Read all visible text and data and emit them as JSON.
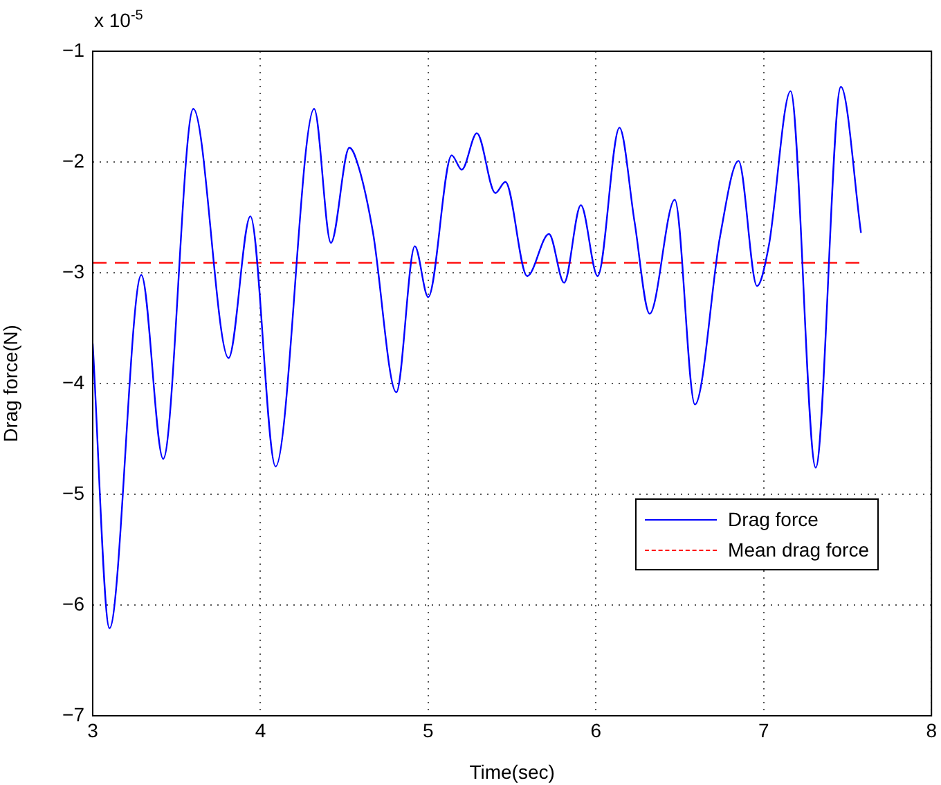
{
  "chart_data": {
    "type": "line",
    "xlabel": "Time(sec)",
    "ylabel": "Drag force(N)",
    "annotations": [
      "x 10$^{-5}$"
    ],
    "xlim": [
      3,
      8
    ],
    "ylim": [
      -7,
      -1
    ],
    "xticks": [
      3,
      4,
      5,
      6,
      7,
      8
    ],
    "yticks": [
      -7,
      -6,
      -5,
      -4,
      -3,
      -2,
      -1
    ],
    "grid": true,
    "legend": "bottom right",
    "marker": "none",
    "series": [
      {
        "name": "Drag force",
        "color": "#0000ff",
        "line_style": "solid",
        "x": [
          3.0,
          3.1,
          3.29,
          3.42,
          3.6,
          3.81,
          3.94,
          4.09,
          4.32,
          4.42,
          4.53,
          4.59,
          4.67,
          4.81,
          4.92,
          5.0,
          5.14,
          5.2,
          5.29,
          5.4,
          5.46,
          5.59,
          5.72,
          5.81,
          5.91,
          6.01,
          6.14,
          6.23,
          6.32,
          6.47,
          6.59,
          6.74,
          6.85,
          6.96,
          7.03,
          7.16,
          7.31,
          7.46,
          7.58
        ],
        "values": [
          -3.64,
          -6.21,
          -3.02,
          -4.68,
          -1.52,
          -3.77,
          -2.49,
          -4.75,
          -1.52,
          -2.73,
          -1.87,
          -2.07,
          -2.63,
          -4.08,
          -2.76,
          -3.22,
          -1.94,
          -2.07,
          -1.74,
          -2.28,
          -2.18,
          -3.03,
          -2.65,
          -3.09,
          -2.39,
          -3.03,
          -1.69,
          -2.54,
          -3.37,
          -2.34,
          -4.19,
          -2.67,
          -1.99,
          -3.12,
          -2.76,
          -1.36,
          -4.76,
          -1.32,
          -2.64
        ]
      },
      {
        "name": "Mean drag force",
        "color": "#ff0000",
        "line_style": "dashed",
        "x": [
          3.0,
          7.58
        ],
        "values": [
          -2.91,
          -2.91
        ]
      }
    ]
  }
}
